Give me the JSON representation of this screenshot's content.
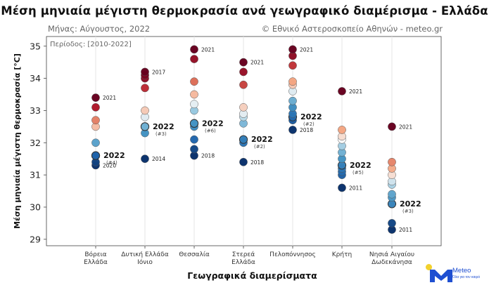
{
  "header": {
    "title": "Μέση μηνιαία μέγιστη θερμοκρασία ανά γεωγραφικό διαμέρισμα - Ελλάδα",
    "month_label": "Μήνας: Αύγουστος, 2022",
    "credit": "© Εθνικό Αστεροσκοπείο Αθηνών - meteo.gr"
  },
  "logo": {
    "name": "Meteo",
    "tagline": "Όλα για τον καιρό"
  },
  "chart_data": {
    "type": "scatter",
    "title": "Μέση μηνιαία μέγιστη θερμοκρασία ανά γεωγραφικό διαμέρισμα - Ελλάδα",
    "period_label": "Περίοδος: [2010-2022]",
    "xlabel": "Γεωγραφικά διαμερίσματα",
    "ylabel": "Μέση μηνιαία μέγιστη θερμοκρασία [°C]",
    "ylim": [
      28.8,
      35.3
    ],
    "yticks": [
      "29",
      "30",
      "31",
      "32",
      "33",
      "34",
      "35"
    ],
    "grid": "vertical",
    "color_scale": {
      "low": "#08306b",
      "mid": "#f7f7f7",
      "high": "#67001f"
    },
    "categories": [
      {
        "label": [
          "Βόρεια",
          "Ελλάδα"
        ],
        "values": [
          33.4,
          33.1,
          32.7,
          32.5,
          32.0,
          31.6,
          31.6,
          31.4,
          31.3
        ],
        "value_2022": 31.6,
        "label_2022": "2022",
        "rank_2022": "(#4)",
        "max_year": "2021",
        "min_year": "2020"
      },
      {
        "label": [
          "Δυτική Ελλάδα",
          "Ιόνιο"
        ],
        "values": [
          34.2,
          34.1,
          34.0,
          33.7,
          33.0,
          32.8,
          32.5,
          32.5,
          32.3,
          31.5
        ],
        "value_2022": 32.5,
        "label_2022": "2022",
        "rank_2022": "(#3)",
        "max_year": "2017",
        "min_year": "2014"
      },
      {
        "label": [
          "Θεσσαλία"
        ],
        "values": [
          34.9,
          34.6,
          33.9,
          33.5,
          33.2,
          33.0,
          32.6,
          32.6,
          32.5,
          32.1,
          31.8,
          31.6
        ],
        "value_2022": 32.6,
        "label_2022": "2022",
        "rank_2022": "(#6)",
        "max_year": "2021",
        "min_year": "2018"
      },
      {
        "label": [
          "Στερεά",
          "Ελλάδα"
        ],
        "values": [
          34.5,
          34.2,
          33.8,
          33.1,
          32.9,
          32.8,
          32.6,
          32.1,
          32.0,
          31.4
        ],
        "value_2022": 32.1,
        "label_2022": "2022",
        "rank_2022": "(#2)",
        "max_year": "2021",
        "min_year": "2018"
      },
      {
        "label": [
          "Πελοπόννησος"
        ],
        "values": [
          34.9,
          34.7,
          34.4,
          33.9,
          33.8,
          33.6,
          33.3,
          33.1,
          32.9,
          32.8,
          32.7,
          32.4
        ],
        "value_2022": 32.8,
        "label_2022": "2022",
        "rank_2022": "(#2)",
        "max_year": "2021",
        "min_year": "2018"
      },
      {
        "label": [
          "Κρήτη"
        ],
        "values": [
          33.6,
          32.4,
          32.2,
          32.1,
          31.9,
          31.7,
          31.5,
          31.3,
          31.2,
          31.1,
          31.0,
          30.6
        ],
        "value_2022": 31.3,
        "label_2022": "2022",
        "rank_2022": "(#5)",
        "max_year": "2021",
        "min_year": "2011"
      },
      {
        "label": [
          "Νησιά Αιγαίου",
          "Δωδεκάνησα"
        ],
        "values": [
          32.5,
          31.4,
          31.2,
          31.0,
          30.8,
          30.7,
          30.4,
          30.3,
          30.1,
          29.5,
          29.3
        ],
        "value_2022": 30.1,
        "label_2022": "2022",
        "rank_2022": "(#3)",
        "max_year": "2021",
        "min_year": "2011"
      }
    ]
  }
}
